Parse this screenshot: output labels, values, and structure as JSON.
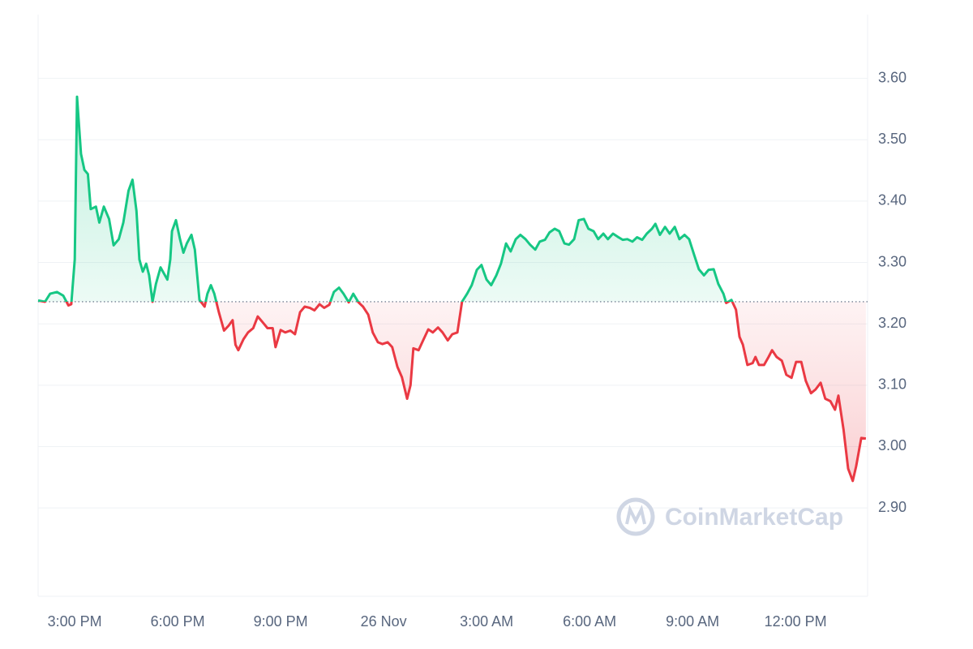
{
  "chart_data": {
    "type": "line",
    "watermark": "CoinMarketCap",
    "xlim": [
      836,
      2286
    ],
    "xticks": [
      {
        "value": 900,
        "label": "3:00 PM"
      },
      {
        "value": 1080,
        "label": "6:00 PM"
      },
      {
        "value": 1260,
        "label": "9:00 PM"
      },
      {
        "value": 1440,
        "label": "26 Nov"
      },
      {
        "value": 1620,
        "label": "3:00 AM"
      },
      {
        "value": 1800,
        "label": "6:00 AM"
      },
      {
        "value": 1980,
        "label": "9:00 AM"
      },
      {
        "value": 2160,
        "label": "12:00 PM"
      }
    ],
    "ylim": [
      2.756,
      3.704
    ],
    "yticks": [
      {
        "value": 2.9,
        "label": "2.90"
      },
      {
        "value": 3.0,
        "label": "3.00"
      },
      {
        "value": 3.1,
        "label": "3.10"
      },
      {
        "value": 3.2,
        "label": "3.20"
      },
      {
        "value": 3.3,
        "label": "3.30"
      },
      {
        "value": 3.4,
        "label": "3.40"
      },
      {
        "value": 3.5,
        "label": "3.50"
      },
      {
        "value": 3.6,
        "label": "3.60"
      }
    ],
    "grid": true,
    "baseline": 3.236,
    "up_color": "#16c784",
    "down_color": "#ea3943",
    "x": [
      836,
      848,
      857,
      869,
      880,
      889,
      894,
      900,
      904,
      911,
      917,
      923,
      928,
      937,
      943,
      951,
      960,
      968,
      977,
      985,
      994,
      1001,
      1008,
      1013,
      1019,
      1025,
      1030,
      1036,
      1042,
      1050,
      1062,
      1067,
      1070,
      1077,
      1084,
      1090,
      1096,
      1104,
      1110,
      1118,
      1127,
      1132,
      1138,
      1144,
      1152,
      1161,
      1169,
      1176,
      1181,
      1186,
      1195,
      1203,
      1212,
      1220,
      1229,
      1237,
      1246,
      1251,
      1260,
      1268,
      1277,
      1285,
      1294,
      1302,
      1311,
      1319,
      1328,
      1336,
      1345,
      1353,
      1362,
      1370,
      1379,
      1387,
      1396,
      1404,
      1413,
      1421,
      1430,
      1438,
      1447,
      1455,
      1464,
      1472,
      1481,
      1487,
      1492,
      1501,
      1509,
      1518,
      1526,
      1535,
      1543,
      1552,
      1560,
      1569,
      1577,
      1586,
      1594,
      1603,
      1611,
      1620,
      1628,
      1637,
      1645,
      1654,
      1662,
      1671,
      1679,
      1688,
      1696,
      1705,
      1713,
      1722,
      1730,
      1739,
      1747,
      1756,
      1764,
      1773,
      1781,
      1790,
      1798,
      1807,
      1815,
      1824,
      1832,
      1841,
      1849,
      1858,
      1866,
      1875,
      1883,
      1892,
      1900,
      1909,
      1915,
      1923,
      1932,
      1940,
      1949,
      1957,
      1966,
      1974,
      1983,
      1991,
      2000,
      2008,
      2017,
      2025,
      2034,
      2039,
      2048,
      2056,
      2062,
      2068,
      2076,
      2085,
      2090,
      2096,
      2105,
      2113,
      2119,
      2127,
      2136,
      2144,
      2153,
      2161,
      2170,
      2178,
      2187,
      2195,
      2204,
      2212,
      2221,
      2229,
      2235,
      2244,
      2252,
      2260,
      2266,
      2275,
      2283
    ],
    "values": [
      3.238,
      3.236,
      3.249,
      3.252,
      3.246,
      3.23,
      3.232,
      3.305,
      3.57,
      3.477,
      3.451,
      3.444,
      3.387,
      3.391,
      3.365,
      3.391,
      3.371,
      3.328,
      3.338,
      3.365,
      3.417,
      3.435,
      3.384,
      3.305,
      3.285,
      3.298,
      3.279,
      3.236,
      3.265,
      3.292,
      3.272,
      3.305,
      3.351,
      3.369,
      3.338,
      3.316,
      3.331,
      3.345,
      3.321,
      3.239,
      3.228,
      3.249,
      3.263,
      3.249,
      3.219,
      3.189,
      3.197,
      3.206,
      3.166,
      3.157,
      3.175,
      3.186,
      3.193,
      3.212,
      3.202,
      3.193,
      3.193,
      3.162,
      3.19,
      3.186,
      3.189,
      3.183,
      3.219,
      3.228,
      3.226,
      3.222,
      3.232,
      3.226,
      3.231,
      3.252,
      3.259,
      3.249,
      3.235,
      3.249,
      3.235,
      3.228,
      3.215,
      3.186,
      3.17,
      3.167,
      3.17,
      3.162,
      3.13,
      3.113,
      3.078,
      3.1,
      3.16,
      3.157,
      3.173,
      3.191,
      3.186,
      3.194,
      3.186,
      3.173,
      3.183,
      3.186,
      3.236,
      3.249,
      3.263,
      3.288,
      3.296,
      3.272,
      3.263,
      3.279,
      3.298,
      3.331,
      3.318,
      3.338,
      3.345,
      3.338,
      3.329,
      3.321,
      3.334,
      3.337,
      3.349,
      3.355,
      3.351,
      3.331,
      3.329,
      3.338,
      3.369,
      3.371,
      3.355,
      3.351,
      3.338,
      3.347,
      3.338,
      3.347,
      3.342,
      3.337,
      3.338,
      3.334,
      3.341,
      3.337,
      3.347,
      3.355,
      3.363,
      3.345,
      3.358,
      3.347,
      3.358,
      3.338,
      3.345,
      3.338,
      3.312,
      3.289,
      3.279,
      3.288,
      3.289,
      3.265,
      3.249,
      3.234,
      3.239,
      3.223,
      3.179,
      3.166,
      3.133,
      3.136,
      3.146,
      3.133,
      3.133,
      3.146,
      3.157,
      3.146,
      3.14,
      3.117,
      3.112,
      3.138,
      3.138,
      3.107,
      3.087,
      3.093,
      3.104,
      3.078,
      3.074,
      3.06,
      3.083,
      3.027,
      2.964,
      2.944,
      2.968,
      3.014,
      3.013
    ]
  }
}
